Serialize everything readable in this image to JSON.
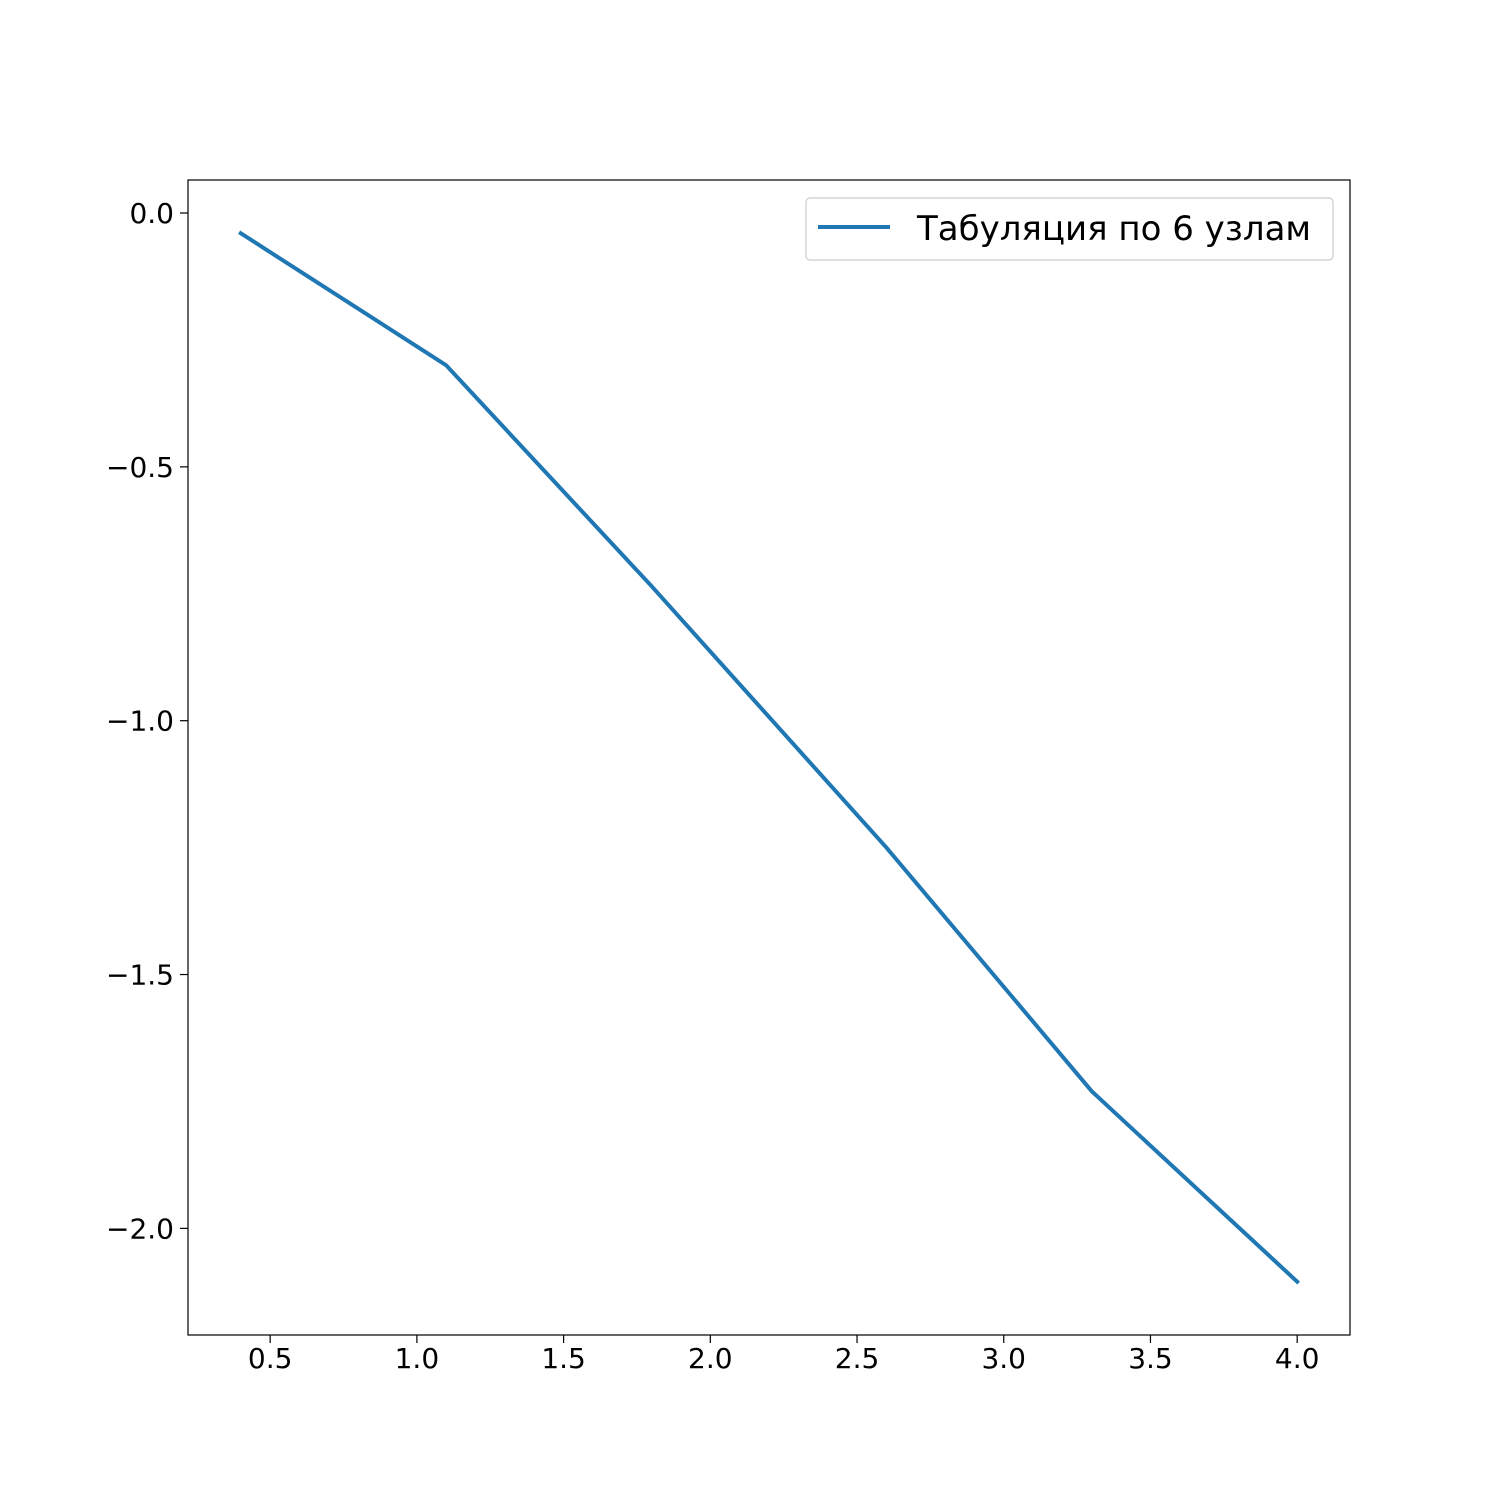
{
  "chart_data": {
    "type": "line",
    "title": "",
    "xlabel": "",
    "ylabel": "",
    "xlim": [
      0.22,
      4.18
    ],
    "ylim": [
      -2.21,
      0.065
    ],
    "xticks": [
      0.5,
      1.0,
      1.5,
      2.0,
      2.5,
      3.0,
      3.5,
      4.0
    ],
    "yticks": [
      0.0,
      -0.5,
      -1.0,
      -1.5,
      -2.0
    ],
    "xtick_labels": [
      "0.5",
      "1.0",
      "1.5",
      "2.0",
      "2.5",
      "3.0",
      "3.5",
      "4.0"
    ],
    "ytick_labels": [
      "0.0",
      "−0.5",
      "−1.0",
      "−1.5",
      "−2.0"
    ],
    "grid": false,
    "legend_position": "top-right",
    "series": [
      {
        "name": "Табуляция по 6 узлам",
        "color": "#1f77b4",
        "x": [
          0.4,
          1.1,
          1.8,
          2.6,
          3.3,
          4.0
        ],
        "y": [
          -0.04,
          -0.3,
          -0.735,
          -1.25,
          -1.73,
          -2.105
        ]
      }
    ]
  }
}
